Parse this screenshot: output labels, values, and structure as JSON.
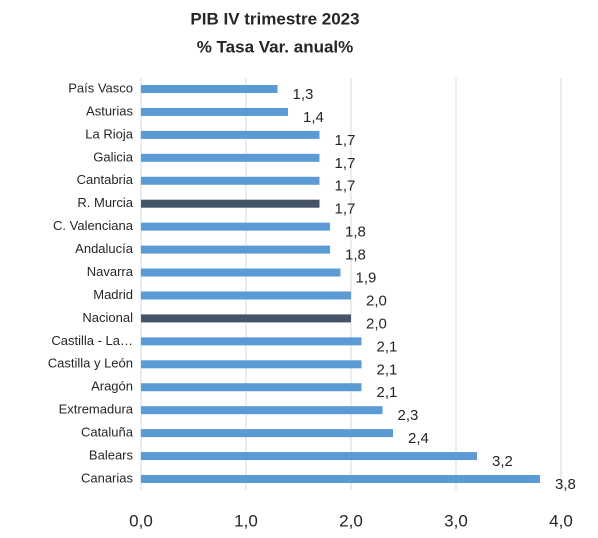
{
  "chart_data": {
    "type": "barh",
    "title": [
      "PIB IV trimestre 2023",
      "% Tasa Var. anual%"
    ],
    "categories": [
      "País Vasco",
      "Asturias",
      "La Rioja",
      "Galicia",
      "Cantabria",
      "R. Murcia",
      "C. Valenciana",
      "Andalucía",
      "Navarra",
      "Madrid",
      "Nacional",
      "Castilla - La…",
      "Castilla y León",
      "Aragón",
      "Extremadura",
      "Cataluña",
      "Balears",
      "Canarias"
    ],
    "values": [
      1.3,
      1.4,
      1.7,
      1.7,
      1.7,
      1.7,
      1.8,
      1.8,
      1.9,
      2.0,
      2.0,
      2.1,
      2.1,
      2.1,
      2.3,
      2.4,
      3.2,
      3.8
    ],
    "value_labels": [
      "1,3",
      "1,4",
      "1,7",
      "1,7",
      "1,7",
      "1,7",
      "1,8",
      "1,8",
      "1,9",
      "2,0",
      "2,0",
      "2,1",
      "2,1",
      "2,1",
      "2,3",
      "2,4",
      "3,2",
      "3,8"
    ],
    "colors": [
      "#5b9bd5",
      "#5b9bd5",
      "#5b9bd5",
      "#5b9bd5",
      "#5b9bd5",
      "#44546a",
      "#5b9bd5",
      "#5b9bd5",
      "#5b9bd5",
      "#5b9bd5",
      "#44546a",
      "#5b9bd5",
      "#5b9bd5",
      "#5b9bd5",
      "#5b9bd5",
      "#5b9bd5",
      "#5b9bd5",
      "#5b9bd5"
    ],
    "xlim": [
      0,
      4
    ],
    "xticks": [
      {
        "value": 0,
        "label": "0,0"
      },
      {
        "value": 1,
        "label": "1,0"
      },
      {
        "value": 2,
        "label": "2,0"
      },
      {
        "value": 3,
        "label": "3,0"
      },
      {
        "value": 4,
        "label": "4,0"
      }
    ],
    "grid": true
  }
}
